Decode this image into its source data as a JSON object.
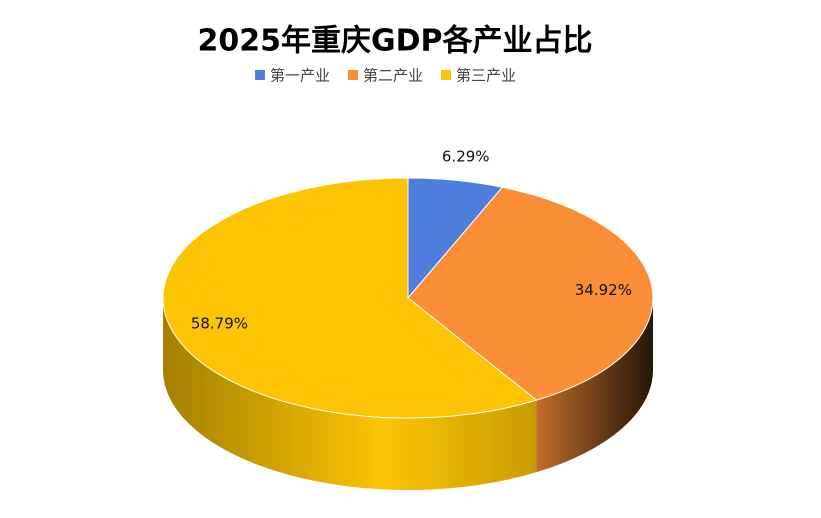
{
  "chart_data": {
    "type": "pie3d",
    "title": "2025年重庆GDP各产业占比",
    "categories": [
      "第一产业",
      "第二产业",
      "第三产业"
    ],
    "values": [
      6.29,
      34.92,
      58.79
    ],
    "value_labels": [
      "6.29%",
      "34.92%",
      "58.79%"
    ],
    "colors": [
      "#4e7fdc",
      "#f98e36",
      "#fcc404"
    ],
    "legend": "top"
  }
}
